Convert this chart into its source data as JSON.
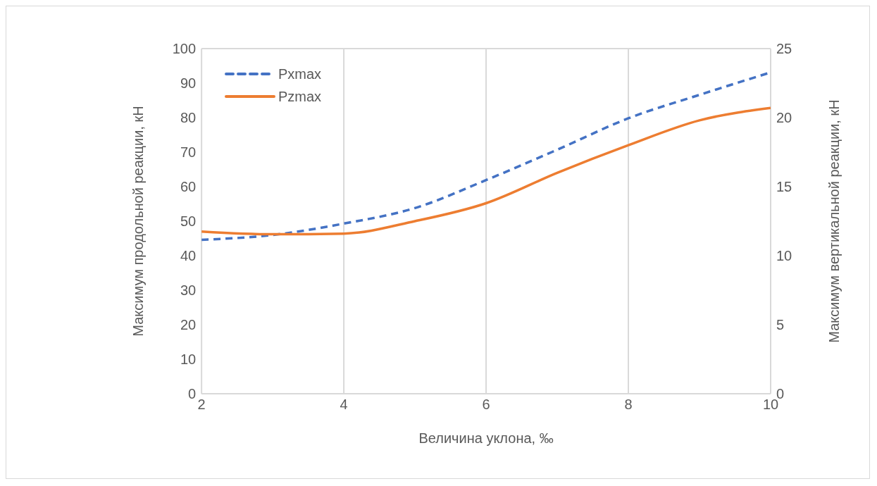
{
  "chart_data": {
    "type": "line",
    "xlabel": "Величина уклона, ‰",
    "ylabel": "Максимум продольной реакции, кН",
    "y2label": "Максимум вертикальной реакции, кН",
    "x": [
      2,
      3,
      4,
      5,
      6,
      7,
      8,
      9,
      10
    ],
    "xlim": [
      2,
      10
    ],
    "xticks": [
      2,
      4,
      6,
      8,
      10
    ],
    "ylim": [
      0,
      100
    ],
    "yticks": [
      0,
      10,
      20,
      30,
      40,
      50,
      60,
      70,
      80,
      90,
      100
    ],
    "y2lim": [
      0,
      25
    ],
    "y2ticks": [
      0,
      5,
      10,
      15,
      20,
      25
    ],
    "grid": true,
    "legend": "top left",
    "marker": "none",
    "series": [
      {
        "name": "Pxmax",
        "color": "#4472c4",
        "line_style": "dashed",
        "values": [
          44.6,
          46.0,
          49.3,
          53.8,
          61.9,
          70.7,
          79.8,
          86.6,
          93.1
        ]
      },
      {
        "name": "Pzmax",
        "color": "#ed7d31",
        "line_style": "solid",
        "axis": "y2",
        "values": [
          11.75,
          11.55,
          11.6,
          12.5,
          13.8,
          16.0,
          18.0,
          19.8,
          20.7
        ]
      }
    ]
  }
}
